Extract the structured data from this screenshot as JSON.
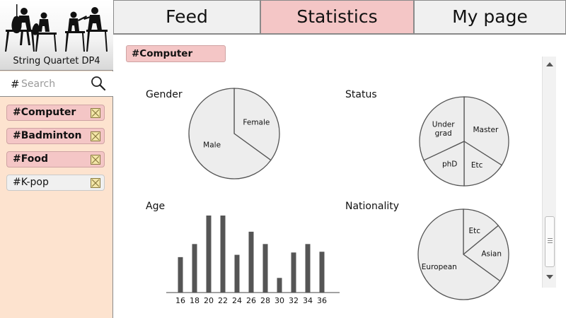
{
  "app": {
    "name": "String Quartet DP4"
  },
  "search": {
    "hash": "#",
    "placeholder": "Search"
  },
  "tags": [
    {
      "label": "#Computer",
      "selected": true
    },
    {
      "label": "#Badminton",
      "selected": true
    },
    {
      "label": "#Food",
      "selected": true
    },
    {
      "label": "#K-pop",
      "selected": false
    }
  ],
  "tabs": [
    {
      "label": "Feed",
      "active": false
    },
    {
      "label": "Statistics",
      "active": true
    },
    {
      "label": "My page",
      "active": false
    }
  ],
  "main": {
    "current_tag": "#Computer"
  },
  "colors": {
    "sidebar_bg": "#fde3cf",
    "selected_bg": "#f4c6c6",
    "pie_fill": "#ededed",
    "bar_fill": "#555555"
  },
  "chart_data": [
    {
      "type": "pie",
      "title": "Gender",
      "slices": [
        {
          "label": "Female",
          "value": 35
        },
        {
          "label": "Male",
          "value": 65
        }
      ]
    },
    {
      "type": "pie",
      "title": "Status",
      "slices": [
        {
          "label": "Master",
          "value": 34
        },
        {
          "label": "Etc",
          "value": 16
        },
        {
          "label": "phD",
          "value": 18
        },
        {
          "label": "Under grad",
          "value": 32
        }
      ]
    },
    {
      "type": "bar",
      "title": "Age",
      "categories": [
        "16",
        "18",
        "20",
        "22",
        "24",
        "26",
        "28",
        "30",
        "32",
        "34",
        "36"
      ],
      "values": [
        46,
        63,
        100,
        100,
        49,
        79,
        63,
        19,
        52,
        63,
        53
      ],
      "ylim": [
        0,
        100
      ]
    },
    {
      "type": "pie",
      "title": "Nationality",
      "slices": [
        {
          "label": "Etc",
          "value": 14
        },
        {
          "label": "Asian",
          "value": 21
        },
        {
          "label": "European",
          "value": 65
        }
      ]
    }
  ]
}
